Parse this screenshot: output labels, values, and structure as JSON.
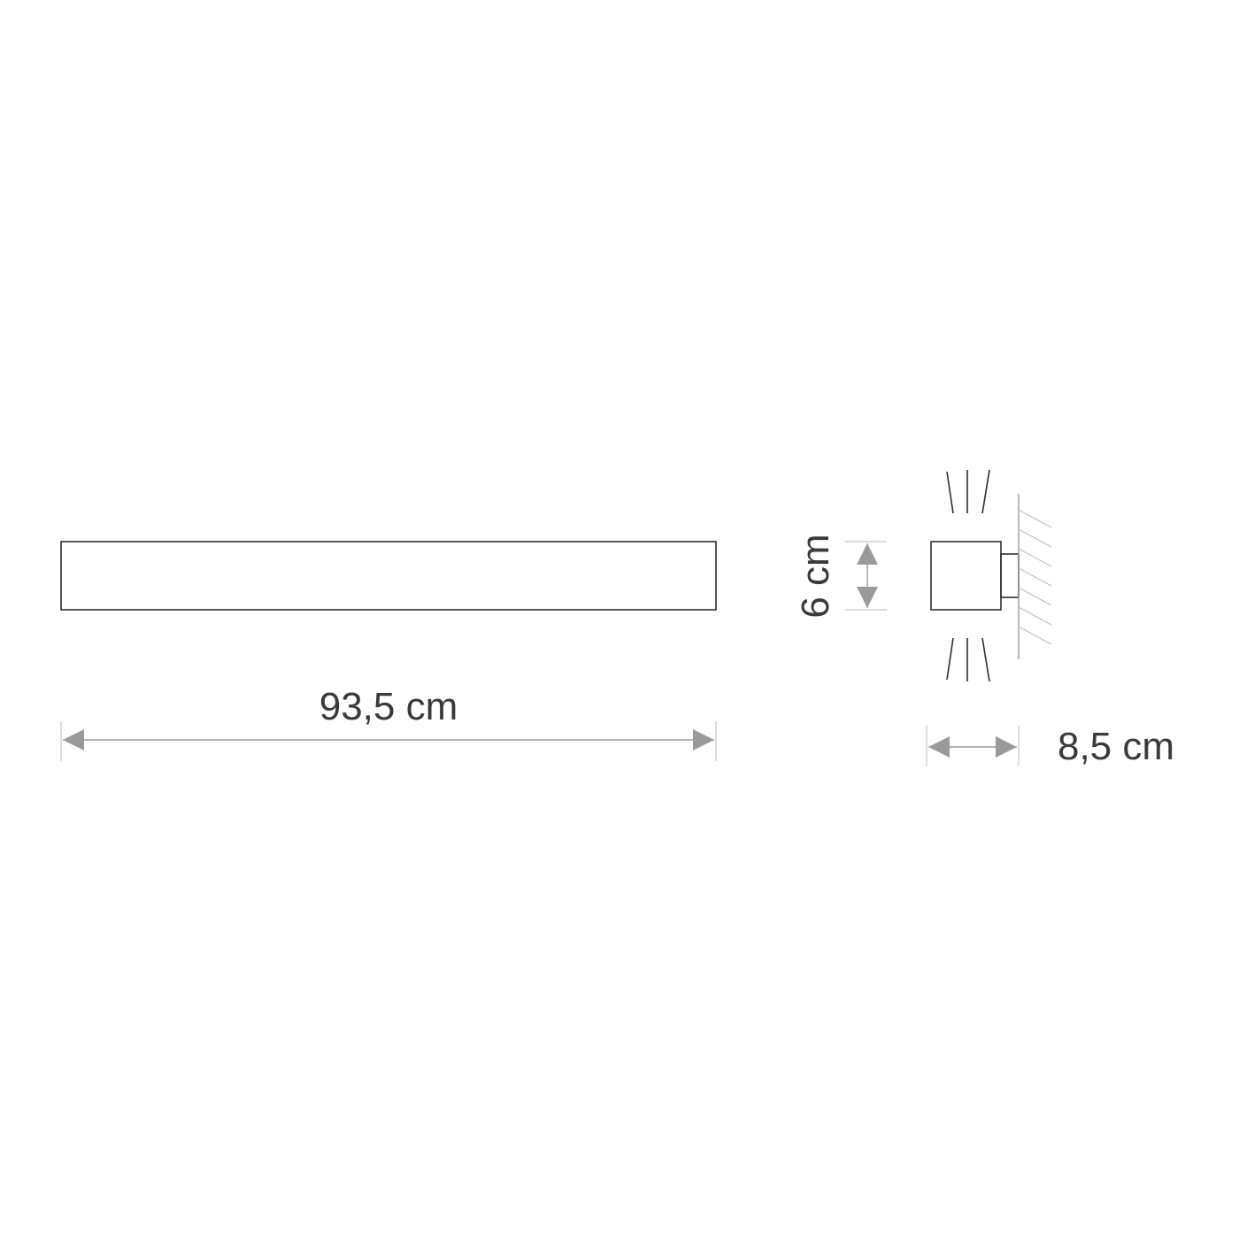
{
  "dimensions": {
    "length": "93,5 cm",
    "height": "6 cm",
    "depth": "8,5 cm"
  },
  "colors": {
    "outline": "#2e2e2e",
    "arrow": "#9a9a9a",
    "extension_line": "#c8c8c8",
    "wall_hatch": "#bdbdbd",
    "text": "#3a3a3a"
  }
}
